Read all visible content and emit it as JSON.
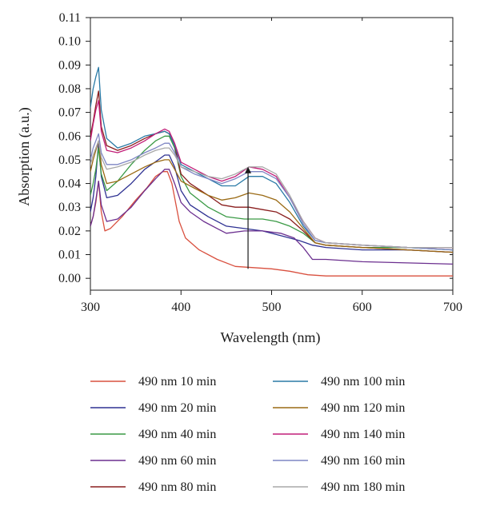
{
  "chart_data": {
    "type": "line",
    "title": "",
    "xlabel": "Wavelength (nm)",
    "ylabel": "Absorption (a.u.)",
    "xlim": [
      300,
      700
    ],
    "ylim": [
      -0.005,
      0.11
    ],
    "x_ticks": [
      "300",
      "400",
      "500",
      "600",
      "700"
    ],
    "y_ticks": [
      "0.00",
      "0.01",
      "0.02",
      "0.03",
      "0.04",
      "0.05",
      "0.06",
      "0.07",
      "0.08",
      "0.09",
      "0.10",
      "0.11"
    ],
    "grid": false,
    "legend": {
      "position": "bottom",
      "columns": 2
    },
    "annotation": {
      "type": "arrow",
      "x": 474,
      "y_from": 0.004,
      "y_to": 0.047
    },
    "series": [
      {
        "name": "490 nm 10 min",
        "color": "#d9503f",
        "points": [
          [
            300,
            0.022
          ],
          [
            303,
            0.026
          ],
          [
            306,
            0.032
          ],
          [
            309,
            0.041
          ],
          [
            312,
            0.028
          ],
          [
            316,
            0.02
          ],
          [
            322,
            0.021
          ],
          [
            335,
            0.026
          ],
          [
            350,
            0.033
          ],
          [
            362,
            0.038
          ],
          [
            372,
            0.043
          ],
          [
            380,
            0.045
          ],
          [
            385,
            0.045
          ],
          [
            390,
            0.04
          ],
          [
            398,
            0.024
          ],
          [
            405,
            0.017
          ],
          [
            420,
            0.012
          ],
          [
            440,
            0.008
          ],
          [
            460,
            0.005
          ],
          [
            480,
            0.0045
          ],
          [
            500,
            0.004
          ],
          [
            520,
            0.003
          ],
          [
            540,
            0.0015
          ],
          [
            560,
            0.001
          ],
          [
            600,
            0.001
          ],
          [
            650,
            0.001
          ],
          [
            700,
            0.001
          ]
        ]
      },
      {
        "name": "490 nm 20 min",
        "color": "#2e3192",
        "points": [
          [
            300,
            0.028
          ],
          [
            303,
            0.034
          ],
          [
            306,
            0.043
          ],
          [
            309,
            0.057
          ],
          [
            312,
            0.043
          ],
          [
            318,
            0.034
          ],
          [
            330,
            0.035
          ],
          [
            345,
            0.04
          ],
          [
            360,
            0.046
          ],
          [
            375,
            0.05
          ],
          [
            382,
            0.052
          ],
          [
            387,
            0.052
          ],
          [
            393,
            0.047
          ],
          [
            400,
            0.037
          ],
          [
            410,
            0.031
          ],
          [
            430,
            0.026
          ],
          [
            450,
            0.022
          ],
          [
            470,
            0.021
          ],
          [
            490,
            0.02
          ],
          [
            510,
            0.018
          ],
          [
            530,
            0.016
          ],
          [
            545,
            0.014
          ],
          [
            560,
            0.013
          ],
          [
            600,
            0.012
          ],
          [
            650,
            0.012
          ],
          [
            700,
            0.011
          ]
        ]
      },
      {
        "name": "490 nm 40 min",
        "color": "#3a9a45",
        "points": [
          [
            300,
            0.035
          ],
          [
            303,
            0.04
          ],
          [
            306,
            0.046
          ],
          [
            309,
            0.055
          ],
          [
            312,
            0.044
          ],
          [
            318,
            0.037
          ],
          [
            330,
            0.041
          ],
          [
            345,
            0.048
          ],
          [
            360,
            0.054
          ],
          [
            372,
            0.058
          ],
          [
            382,
            0.06
          ],
          [
            387,
            0.06
          ],
          [
            393,
            0.055
          ],
          [
            400,
            0.043
          ],
          [
            410,
            0.036
          ],
          [
            430,
            0.03
          ],
          [
            450,
            0.026
          ],
          [
            470,
            0.025
          ],
          [
            490,
            0.025
          ],
          [
            505,
            0.024
          ],
          [
            520,
            0.022
          ],
          [
            535,
            0.019
          ],
          [
            548,
            0.015
          ],
          [
            560,
            0.014
          ],
          [
            600,
            0.013
          ],
          [
            650,
            0.013
          ],
          [
            700,
            0.012
          ]
        ]
      },
      {
        "name": "490 nm 60 min",
        "color": "#6b2f8f",
        "points": [
          [
            300,
            0.022
          ],
          [
            303,
            0.026
          ],
          [
            306,
            0.033
          ],
          [
            309,
            0.041
          ],
          [
            312,
            0.031
          ],
          [
            318,
            0.024
          ],
          [
            330,
            0.025
          ],
          [
            345,
            0.03
          ],
          [
            360,
            0.037
          ],
          [
            372,
            0.042
          ],
          [
            382,
            0.046
          ],
          [
            387,
            0.046
          ],
          [
            393,
            0.04
          ],
          [
            400,
            0.032
          ],
          [
            410,
            0.028
          ],
          [
            425,
            0.024
          ],
          [
            440,
            0.021
          ],
          [
            450,
            0.019
          ],
          [
            470,
            0.02
          ],
          [
            490,
            0.02
          ],
          [
            510,
            0.019
          ],
          [
            525,
            0.017
          ],
          [
            535,
            0.013
          ],
          [
            545,
            0.008
          ],
          [
            560,
            0.008
          ],
          [
            600,
            0.007
          ],
          [
            650,
            0.0065
          ],
          [
            700,
            0.006
          ]
        ]
      },
      {
        "name": "490 nm 80 min",
        "color": "#8a1e1e",
        "points": [
          [
            300,
            0.06
          ],
          [
            303,
            0.066
          ],
          [
            306,
            0.073
          ],
          [
            309,
            0.079
          ],
          [
            312,
            0.064
          ],
          [
            318,
            0.056
          ],
          [
            330,
            0.054
          ],
          [
            345,
            0.056
          ],
          [
            360,
            0.059
          ],
          [
            372,
            0.061
          ],
          [
            382,
            0.062
          ],
          [
            387,
            0.061
          ],
          [
            393,
            0.056
          ],
          [
            400,
            0.044
          ],
          [
            410,
            0.04
          ],
          [
            430,
            0.035
          ],
          [
            445,
            0.031
          ],
          [
            460,
            0.03
          ],
          [
            475,
            0.03
          ],
          [
            490,
            0.029
          ],
          [
            505,
            0.028
          ],
          [
            520,
            0.025
          ],
          [
            535,
            0.02
          ],
          [
            548,
            0.015
          ],
          [
            560,
            0.014
          ],
          [
            600,
            0.013
          ],
          [
            650,
            0.012
          ],
          [
            700,
            0.011
          ]
        ]
      },
      {
        "name": "490 nm 100 min",
        "color": "#2a7aa6",
        "points": [
          [
            300,
            0.072
          ],
          [
            303,
            0.08
          ],
          [
            306,
            0.085
          ],
          [
            309,
            0.089
          ],
          [
            312,
            0.071
          ],
          [
            318,
            0.059
          ],
          [
            330,
            0.055
          ],
          [
            345,
            0.057
          ],
          [
            360,
            0.06
          ],
          [
            372,
            0.061
          ],
          [
            382,
            0.062
          ],
          [
            387,
            0.061
          ],
          [
            393,
            0.056
          ],
          [
            400,
            0.048
          ],
          [
            415,
            0.045
          ],
          [
            430,
            0.042
          ],
          [
            445,
            0.039
          ],
          [
            460,
            0.039
          ],
          [
            475,
            0.043
          ],
          [
            490,
            0.043
          ],
          [
            505,
            0.04
          ],
          [
            520,
            0.032
          ],
          [
            535,
            0.022
          ],
          [
            548,
            0.016
          ],
          [
            560,
            0.015
          ],
          [
            600,
            0.014
          ],
          [
            650,
            0.013
          ],
          [
            700,
            0.012
          ]
        ]
      },
      {
        "name": "490 nm 120 min",
        "color": "#9a6a14",
        "points": [
          [
            300,
            0.045
          ],
          [
            303,
            0.05
          ],
          [
            306,
            0.054
          ],
          [
            309,
            0.058
          ],
          [
            312,
            0.048
          ],
          [
            318,
            0.04
          ],
          [
            330,
            0.041
          ],
          [
            345,
            0.044
          ],
          [
            360,
            0.047
          ],
          [
            372,
            0.049
          ],
          [
            382,
            0.05
          ],
          [
            387,
            0.05
          ],
          [
            393,
            0.046
          ],
          [
            400,
            0.041
          ],
          [
            415,
            0.038
          ],
          [
            430,
            0.035
          ],
          [
            445,
            0.033
          ],
          [
            460,
            0.034
          ],
          [
            475,
            0.036
          ],
          [
            490,
            0.035
          ],
          [
            505,
            0.033
          ],
          [
            520,
            0.028
          ],
          [
            535,
            0.021
          ],
          [
            548,
            0.015
          ],
          [
            560,
            0.014
          ],
          [
            600,
            0.013
          ],
          [
            650,
            0.012
          ],
          [
            700,
            0.011
          ]
        ]
      },
      {
        "name": "490 nm 140 min",
        "color": "#c21e78",
        "points": [
          [
            300,
            0.058
          ],
          [
            303,
            0.065
          ],
          [
            306,
            0.071
          ],
          [
            309,
            0.075
          ],
          [
            312,
            0.062
          ],
          [
            318,
            0.054
          ],
          [
            330,
            0.053
          ],
          [
            345,
            0.055
          ],
          [
            360,
            0.058
          ],
          [
            372,
            0.061
          ],
          [
            382,
            0.063
          ],
          [
            387,
            0.062
          ],
          [
            393,
            0.057
          ],
          [
            400,
            0.049
          ],
          [
            415,
            0.046
          ],
          [
            430,
            0.043
          ],
          [
            445,
            0.041
          ],
          [
            460,
            0.043
          ],
          [
            475,
            0.047
          ],
          [
            490,
            0.046
          ],
          [
            505,
            0.043
          ],
          [
            520,
            0.034
          ],
          [
            535,
            0.024
          ],
          [
            548,
            0.017
          ],
          [
            560,
            0.015
          ],
          [
            600,
            0.014
          ],
          [
            650,
            0.013
          ],
          [
            700,
            0.013
          ]
        ]
      },
      {
        "name": "490 nm 160 min",
        "color": "#7f86c4",
        "points": [
          [
            300,
            0.05
          ],
          [
            303,
            0.055
          ],
          [
            306,
            0.058
          ],
          [
            309,
            0.061
          ],
          [
            312,
            0.053
          ],
          [
            318,
            0.048
          ],
          [
            330,
            0.048
          ],
          [
            345,
            0.05
          ],
          [
            360,
            0.053
          ],
          [
            372,
            0.055
          ],
          [
            382,
            0.057
          ],
          [
            387,
            0.057
          ],
          [
            393,
            0.053
          ],
          [
            400,
            0.047
          ],
          [
            415,
            0.044
          ],
          [
            430,
            0.042
          ],
          [
            445,
            0.04
          ],
          [
            460,
            0.042
          ],
          [
            475,
            0.045
          ],
          [
            490,
            0.045
          ],
          [
            505,
            0.042
          ],
          [
            520,
            0.034
          ],
          [
            535,
            0.023
          ],
          [
            548,
            0.016
          ],
          [
            560,
            0.015
          ],
          [
            600,
            0.014
          ],
          [
            650,
            0.013
          ],
          [
            700,
            0.012
          ]
        ]
      },
      {
        "name": "490 nm 180 min",
        "color": "#a8a8a8",
        "points": [
          [
            300,
            0.048
          ],
          [
            303,
            0.052
          ],
          [
            306,
            0.055
          ],
          [
            309,
            0.058
          ],
          [
            312,
            0.051
          ],
          [
            318,
            0.046
          ],
          [
            330,
            0.047
          ],
          [
            345,
            0.049
          ],
          [
            360,
            0.052
          ],
          [
            372,
            0.054
          ],
          [
            382,
            0.055
          ],
          [
            387,
            0.055
          ],
          [
            393,
            0.052
          ],
          [
            400,
            0.047
          ],
          [
            415,
            0.045
          ],
          [
            430,
            0.043
          ],
          [
            445,
            0.042
          ],
          [
            460,
            0.044
          ],
          [
            475,
            0.047
          ],
          [
            490,
            0.047
          ],
          [
            505,
            0.044
          ],
          [
            520,
            0.035
          ],
          [
            535,
            0.024
          ],
          [
            548,
            0.017
          ],
          [
            560,
            0.015
          ],
          [
            600,
            0.014
          ],
          [
            650,
            0.013
          ],
          [
            700,
            0.013
          ]
        ]
      }
    ]
  }
}
